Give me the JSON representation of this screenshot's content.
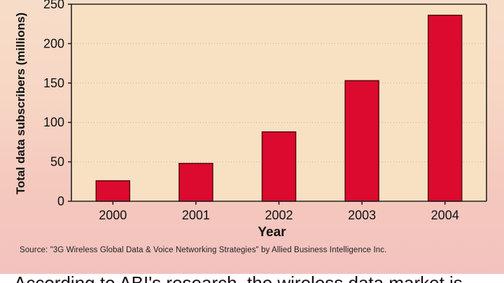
{
  "chart_data": {
    "type": "bar",
    "categories": [
      "2000",
      "2001",
      "2002",
      "2003",
      "2004"
    ],
    "values": [
      26,
      48,
      88,
      153,
      236
    ],
    "xlabel": "Year",
    "ylabel": "Total data subscribers (millions)",
    "ylim": [
      0,
      250
    ],
    "yticks": [
      0,
      50,
      100,
      150,
      200,
      250
    ],
    "grid": true,
    "colors": {
      "bar": "#dc0a2e",
      "plot_background": "#f8e1c3"
    }
  },
  "source_note": "Source: \"3G Wireless Global Data & Voice Networking Strategies\" by Allied Business Intelligence Inc.",
  "caption_text": "According to ABI's research, the wireless data market is"
}
